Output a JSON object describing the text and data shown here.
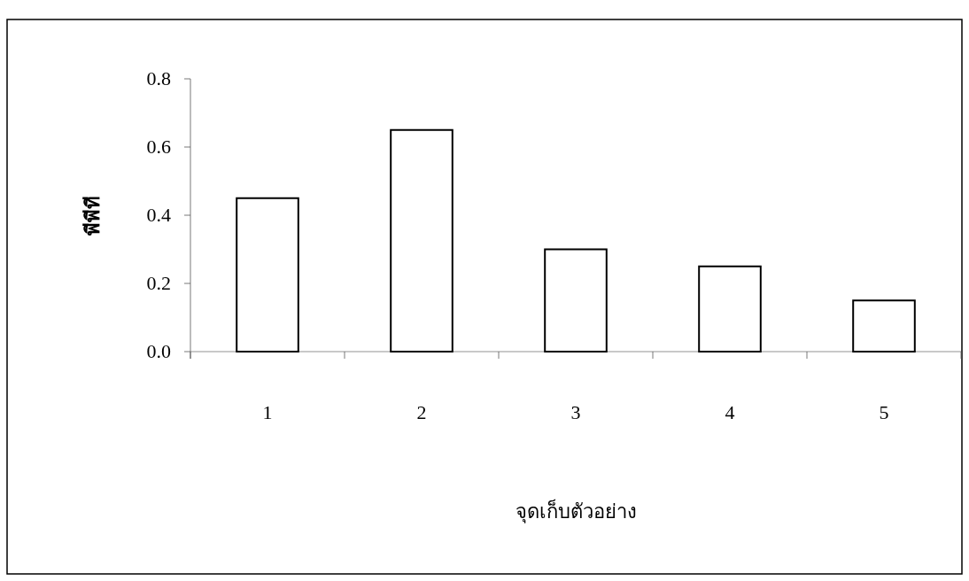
{
  "chart_data": {
    "type": "bar",
    "xlabel": "จุดเก็บตัวอย่าง",
    "ylabel": "พีพีที",
    "categories": [
      "1",
      "2",
      "3",
      "4",
      "5"
    ],
    "values": [
      0.45,
      0.65,
      0.3,
      0.25,
      0.15
    ],
    "color": "#ffffff",
    "ylim": [
      0,
      0.8
    ],
    "yticks": [
      {
        "value": 0,
        "label": "0.0"
      },
      {
        "value": 0.2,
        "label": "0.2"
      },
      {
        "value": 0.4,
        "label": "0.4"
      },
      {
        "value": 0.6,
        "label": "0.6"
      },
      {
        "value": 0.8,
        "label": "0.8"
      }
    ],
    "grid": false
  }
}
